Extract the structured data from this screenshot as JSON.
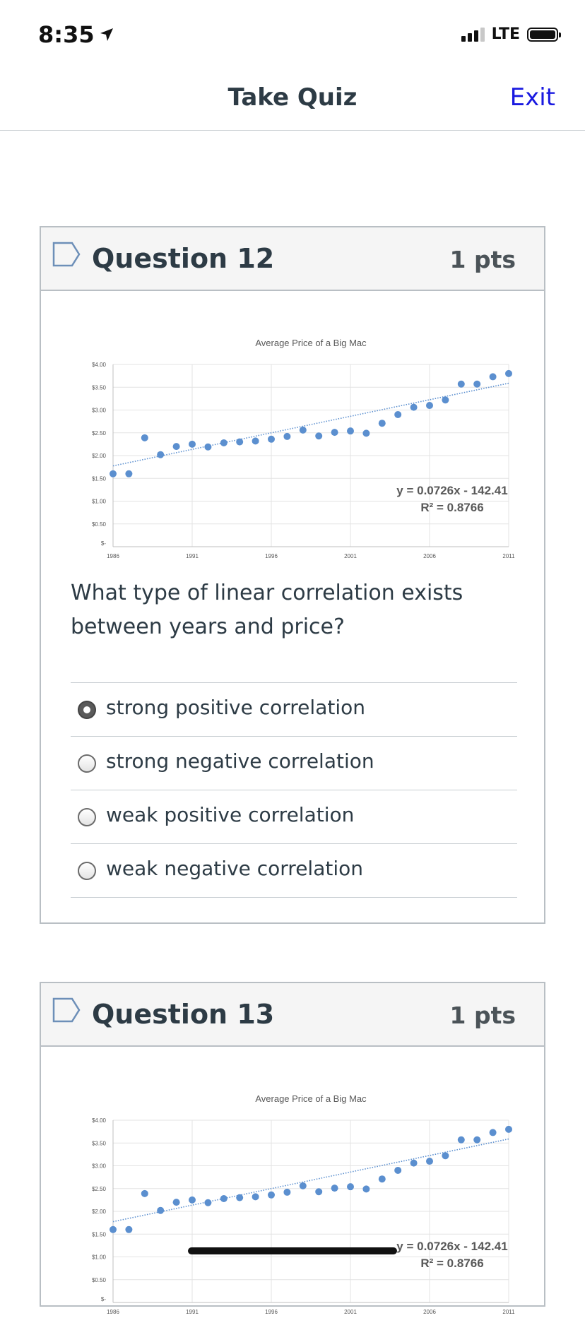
{
  "status_bar": {
    "time": "8:35",
    "network": "LTE",
    "icons": [
      "location-arrow-icon",
      "signal-icon",
      "battery-icon"
    ]
  },
  "header": {
    "title": "Take Quiz",
    "exit_label": "Exit"
  },
  "questions": [
    {
      "title": "Question 12",
      "points": "1 pts",
      "prompt": "What type of linear correlation exists between years and price?",
      "answers": [
        {
          "label": "strong positive correlation",
          "selected": true
        },
        {
          "label": "strong negative correlation",
          "selected": false
        },
        {
          "label": "weak positive correlation",
          "selected": false
        },
        {
          "label": "weak negative correlation",
          "selected": false
        }
      ]
    },
    {
      "title": "Question 13",
      "points": "1 pts"
    }
  ],
  "chart_data": {
    "type": "scatter",
    "title": "Average Price of a Big Mac",
    "xlabel": "",
    "ylabel": "",
    "xlim": [
      1986,
      2011
    ],
    "ylim": [
      0,
      4
    ],
    "x_ticks": [
      "1986",
      "1991",
      "1996",
      "2001",
      "2006",
      "2011"
    ],
    "y_ticks": [
      "$-",
      "$0.50",
      "$1.00",
      "$1.50",
      "$2.00",
      "$2.50",
      "$3.00",
      "$3.50",
      "$4.00"
    ],
    "grid": true,
    "x": [
      1986,
      1987,
      1988,
      1989,
      1990,
      1991,
      1992,
      1993,
      1994,
      1995,
      1996,
      1997,
      1998,
      1999,
      2000,
      2001,
      2002,
      2003,
      2004,
      2005,
      2006,
      2007,
      2008,
      2009,
      2010,
      2011
    ],
    "y": [
      1.6,
      1.6,
      2.39,
      2.02,
      2.2,
      2.25,
      2.19,
      2.28,
      2.3,
      2.32,
      2.36,
      2.42,
      2.56,
      2.43,
      2.51,
      2.54,
      2.49,
      2.71,
      2.9,
      3.06,
      3.1,
      3.22,
      3.57,
      3.57,
      3.73,
      3.8
    ],
    "trendline": {
      "slope": 0.0726,
      "intercept": -142.41,
      "style": "dotted"
    },
    "annotations": [
      "y = 0.0726x - 142.41",
      "R² = 0.8766"
    ],
    "color": "#5b8fcf"
  }
}
